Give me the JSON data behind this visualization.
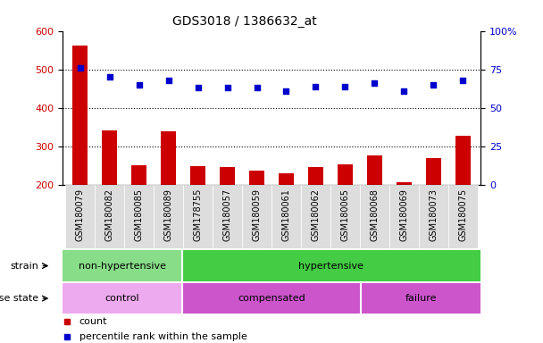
{
  "title": "GDS3018 / 1386632_at",
  "samples": [
    "GSM180079",
    "GSM180082",
    "GSM180085",
    "GSM180089",
    "GSM178755",
    "GSM180057",
    "GSM180059",
    "GSM180061",
    "GSM180062",
    "GSM180065",
    "GSM180068",
    "GSM180069",
    "GSM180073",
    "GSM180075"
  ],
  "count_values": [
    562,
    343,
    252,
    340,
    249,
    246,
    237,
    230,
    248,
    255,
    277,
    208,
    270,
    328
  ],
  "percentile_values": [
    76,
    70,
    65,
    68,
    63,
    63,
    63,
    61,
    64,
    64,
    66,
    61,
    65,
    68
  ],
  "ylim_left": [
    200,
    600
  ],
  "ylim_right": [
    0,
    100
  ],
  "yticks_left": [
    200,
    300,
    400,
    500,
    600
  ],
  "yticks_right": [
    0,
    25,
    50,
    75,
    100
  ],
  "bar_color": "#cc0000",
  "dot_color": "#0000cc",
  "strain_groups": [
    {
      "label": "non-hypertensive",
      "start": 0,
      "end": 4,
      "color": "#88dd88"
    },
    {
      "label": "hypertensive",
      "start": 4,
      "end": 14,
      "color": "#44cc44"
    }
  ],
  "disease_groups": [
    {
      "label": "control",
      "start": 0,
      "end": 4,
      "color": "#eeaaee"
    },
    {
      "label": "compensated",
      "start": 4,
      "end": 10,
      "color": "#cc55cc"
    },
    {
      "label": "failure",
      "start": 10,
      "end": 14,
      "color": "#cc55cc"
    }
  ],
  "strain_label": "strain",
  "disease_label": "disease state",
  "legend_count": "count",
  "legend_percentile": "percentile rank within the sample",
  "tick_label_color_left": "#cc0000",
  "tick_label_color_right": "#0000cc",
  "bar_width": 0.5,
  "xtick_bg": "#dddddd",
  "grid_dotted_vals": [
    300,
    400,
    500
  ]
}
